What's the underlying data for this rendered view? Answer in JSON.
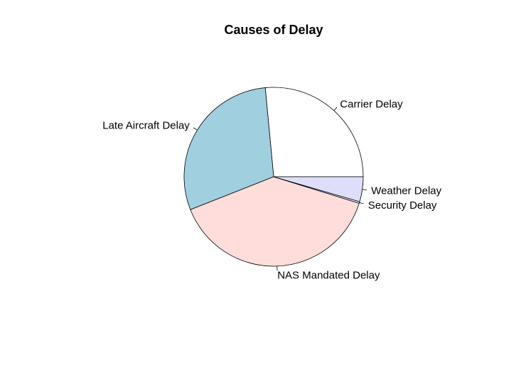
{
  "chart_data": {
    "type": "pie",
    "title": "Causes of Delay",
    "start_angle_deg": 0,
    "direction": "counterclockwise",
    "slices": [
      {
        "label": "Carrier Delay",
        "value": 26.5,
        "color": "#FFFFFF"
      },
      {
        "label": "Late Aircraft Delay",
        "value": 29.5,
        "color": "#A0CFE0"
      },
      {
        "label": "NAS Mandated Delay",
        "value": 39.2,
        "color": "#FFDDDB"
      },
      {
        "label": "Security Delay",
        "value": 0.3,
        "color": "#F0E8FF"
      },
      {
        "label": "Weather Delay",
        "value": 4.5,
        "color": "#DEDEFA"
      }
    ]
  }
}
